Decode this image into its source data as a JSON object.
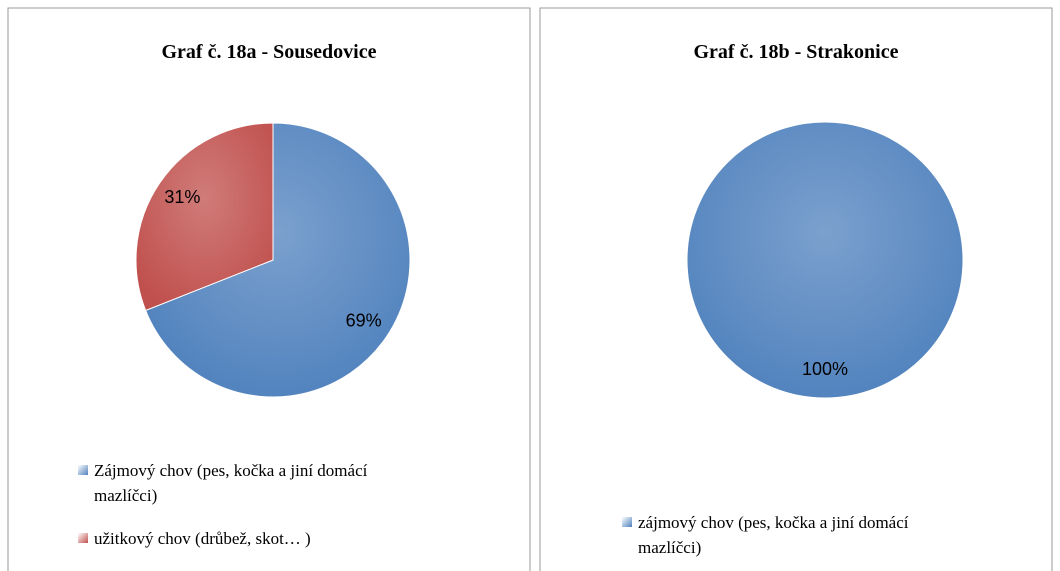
{
  "chart_data": [
    {
      "type": "pie",
      "title": "Graf č. 18a - Sousedovice",
      "categories": [
        "Zájmový chov (pes, kočka a jiní domácí mazlíčci)",
        "užitkový chov (drůbež, skot… )"
      ],
      "values": [
        69,
        31
      ],
      "value_labels": [
        "69%",
        "31%"
      ],
      "colors": [
        "#4f81bd",
        "#c0504d"
      ],
      "legend": "bottom"
    },
    {
      "type": "pie",
      "title": "Graf č. 18b - Strakonice",
      "categories": [
        "zájmový chov (pes, kočka a jiní domácí mazlíčci)"
      ],
      "values": [
        100
      ],
      "value_labels": [
        "100%"
      ],
      "colors": [
        "#4f81bd"
      ],
      "legend": "bottom"
    }
  ]
}
